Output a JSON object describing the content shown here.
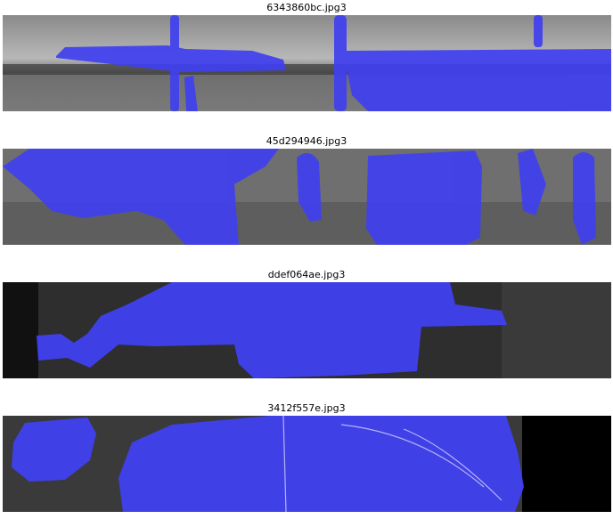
{
  "panels": [
    {
      "title": "6343860bc.jpg3",
      "overlay_color": "#3f3ff5",
      "steel_tone": "light-grey"
    },
    {
      "title": "45d294946.jpg3",
      "overlay_color": "#3f3ff5",
      "steel_tone": "mid-grey"
    },
    {
      "title": "ddef064ae.jpg3",
      "overlay_color": "#3f3ff5",
      "steel_tone": "dark-grey"
    },
    {
      "title": "3412f557e.jpg3",
      "overlay_color": "#3f3ff5",
      "steel_tone": "dark-grey"
    }
  ]
}
